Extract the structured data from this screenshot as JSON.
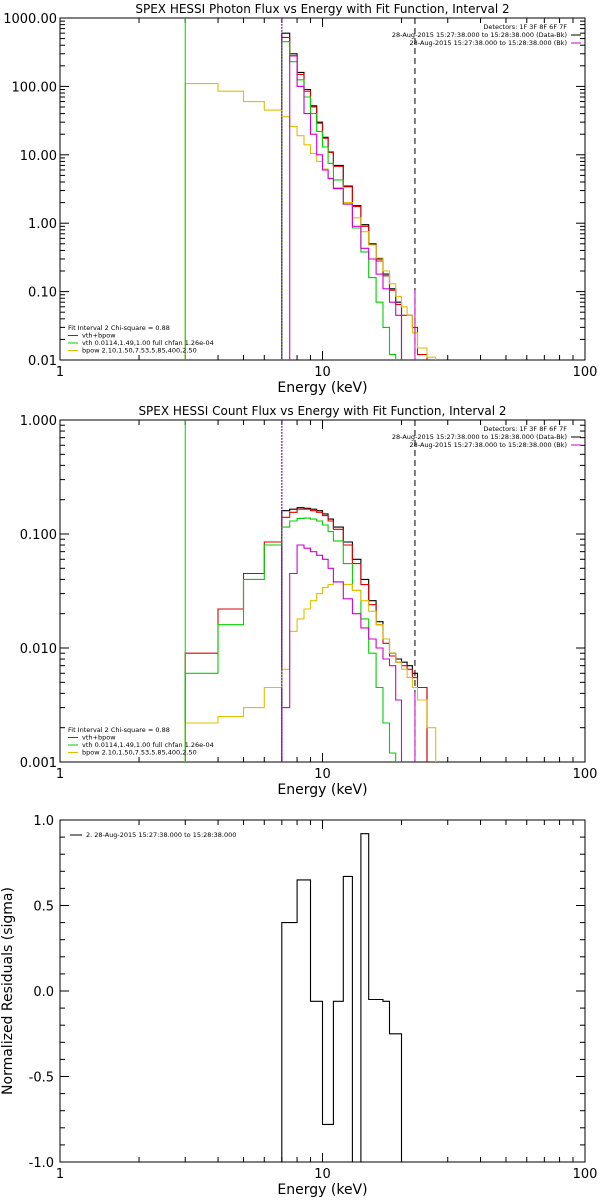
{
  "colors": {
    "total": "#000000",
    "model": "#e00000",
    "vth": "#00d000",
    "bpow": "#e0c000",
    "data": "#d000d0",
    "marker": "#8000ff"
  },
  "panels": [
    {
      "title": "SPEX HESSI Photon Flux vs Energy with Fit Function, Interval 2",
      "xlabel": "Energy (keV)",
      "ylabel": "",
      "ytick_labels": [
        "0.01",
        "0.10",
        "1.00",
        "10.00",
        "100.00",
        "1000.00"
      ],
      "xtick_labels": [
        "1",
        "10",
        "100"
      ],
      "info": [
        "Detectors: 1F 3F 8F 6F 7F",
        "28-Aug-2015 15:27:38.000 to 15:28:38.000 (Data-Bk)",
        "28-Aug-2015 15:27:38.000 to 15:28:38.000 (Bk)"
      ],
      "legend": [
        "Fit Interval 2   Chi-square = 0.88",
        "vth+bpow",
        "vth 0.0114,1.49,1.00  full chfan 1.26e-04",
        "bpow 2.10,1.50,7.53,5.85,400,2.50"
      ]
    },
    {
      "title": "SPEX HESSI Count Flux vs Energy with Fit Function, Interval 2",
      "xlabel": "Energy (keV)",
      "ylabel": "",
      "ytick_labels": [
        "0.001",
        "0.010",
        "0.100",
        "1.000"
      ],
      "xtick_labels": [
        "1",
        "10",
        "100"
      ],
      "info": [
        "Detectors: 1F 3F 8F 6F 7F",
        "28-Aug-2015 15:27:38.000 to 15:28:38.000 (Data-Bk)",
        "28-Aug-2015 15:27:38.000 to 15:28:38.000 (Bk)"
      ],
      "legend": [
        "Fit Interval 2   Chi-square = 0.88",
        "vth+bpow",
        "vth 0.0114,1.49,1.00  full chfan 1.26e-04",
        "bpow 2.10,1.50,7.53,5.85,400,2.50"
      ]
    },
    {
      "title": "",
      "xlabel": "Energy (keV)",
      "ylabel": "Normalized Residuals (sigma)",
      "ytick_labels": [
        "-1.0",
        "-0.5",
        "0.0",
        "0.5",
        "1.0"
      ],
      "xtick_labels": [
        "1",
        "10",
        "100"
      ],
      "info": [
        "2. 28-Aug-2015 15:27:38.000 to 15:28:38.000"
      ],
      "legend": []
    }
  ],
  "chart_data": [
    {
      "type": "line",
      "title": "SPEX HESSI Photon Flux vs Energy with Fit Function, Interval 2",
      "xlabel": "Energy (keV)",
      "xscale": "log",
      "yscale": "log",
      "xlim": [
        1,
        100
      ],
      "ylim": [
        0.01,
        1000
      ],
      "vlines": [
        {
          "x": 7.0,
          "style": "dotted"
        },
        {
          "x": 22.5,
          "style": "dashed"
        }
      ],
      "edges": [
        3,
        4,
        5,
        6,
        7,
        7.5,
        8,
        8.5,
        9,
        9.5,
        10,
        10.5,
        11,
        12,
        13,
        14,
        15,
        16,
        17,
        18,
        19,
        20,
        21,
        22,
        23,
        25,
        27,
        30
      ],
      "series": [
        {
          "name": "vth+bpow",
          "color": "#000000",
          "values": [
            null,
            null,
            null,
            null,
            600,
            300,
            160,
            90,
            52,
            30,
            18,
            11,
            7,
            3.5,
            1.8,
            0.95,
            0.5,
            0.3,
            0.18,
            0.11,
            0.07,
            null,
            null,
            null,
            null,
            null,
            null
          ]
        },
        {
          "name": "",
          "color": "#e00000",
          "values": [
            null,
            null,
            null,
            null,
            520,
            280,
            150,
            85,
            50,
            29,
            17.5,
            10.8,
            6.8,
            3.4,
            1.75,
            0.9,
            0.48,
            0.28,
            0.17,
            0.105,
            0.065,
            0.045,
            0.045,
            0.03,
            0.012,
            null,
            null
          ]
        },
        {
          "name": "vth 0.0114,1.49,1.00  full chfan 1.26e-04",
          "color": "#00d000",
          "values": [
            null,
            null,
            null,
            null,
            450,
            230,
            125,
            70,
            40,
            22,
            13,
            7.5,
            4.3,
            1.9,
            0.85,
            0.38,
            0.16,
            0.07,
            0.03,
            0.012,
            null,
            null,
            null,
            null,
            null,
            null,
            null
          ]
        },
        {
          "name": "bpow 2.10,1.50,7.53,5.85,400,2.50",
          "color": "#e0c000",
          "values": [
            110,
            85,
            60,
            45,
            36,
            26,
            19,
            14,
            10.5,
            8,
            6.2,
            4.5,
            3.3,
            2.0,
            1.2,
            0.75,
            0.48,
            0.31,
            0.2,
            0.13,
            0.085,
            0.06,
            0.045,
            0.025,
            0.015,
            0.011,
            null
          ]
        },
        {
          "name": "",
          "color": "#d000d0",
          "values": [
            null,
            null,
            null,
            null,
            null,
            280,
            100,
            40,
            20,
            10,
            6,
            4.5,
            3.2,
            1.9,
            0.9,
            0.43,
            0.3,
            0.18,
            0.11,
            0.07,
            0.045,
            null,
            null,
            null,
            null,
            null,
            null
          ]
        }
      ]
    },
    {
      "type": "line",
      "title": "SPEX HESSI Count Flux vs Energy with Fit Function, Interval 2",
      "xlabel": "Energy (keV)",
      "xscale": "log",
      "yscale": "log",
      "xlim": [
        1,
        100
      ],
      "ylim": [
        0.001,
        1
      ],
      "vlines": [
        {
          "x": 7.0,
          "style": "dotted"
        },
        {
          "x": 22.5,
          "style": "dashed"
        }
      ],
      "edges": [
        3,
        4,
        5,
        6,
        7,
        7.5,
        8,
        8.5,
        9,
        9.5,
        10,
        10.5,
        11,
        12,
        13,
        14,
        15,
        16,
        17,
        18,
        19,
        20,
        21,
        22,
        23,
        25,
        27,
        30
      ],
      "series": [
        {
          "name": "vth+bpow",
          "color": "#000000",
          "values": [
            null,
            null,
            null,
            null,
            0.16,
            0.165,
            0.17,
            0.168,
            0.165,
            0.16,
            0.15,
            0.135,
            0.115,
            0.085,
            0.06,
            0.04,
            0.026,
            0.017,
            0.012,
            0.009,
            0.008,
            0.0075,
            0.007,
            0.006,
            0.0045,
            null,
            null
          ]
        },
        {
          "name": "",
          "color": "#e00000",
          "values": [
            0.009,
            0.022,
            0.045,
            0.085,
            0.14,
            0.155,
            0.165,
            0.165,
            0.16,
            0.155,
            0.145,
            0.13,
            0.11,
            0.08,
            0.055,
            0.036,
            0.024,
            0.016,
            0.011,
            0.0085,
            0.0075,
            0.007,
            0.0065,
            0.0055,
            0.0045,
            null,
            null
          ]
        },
        {
          "name": "vth 0.0114,1.49,1.00  full chfan 1.26e-04",
          "color": "#00d000",
          "values": [
            0.006,
            0.016,
            0.04,
            0.08,
            0.115,
            0.13,
            0.137,
            0.138,
            0.135,
            0.13,
            0.12,
            0.105,
            0.087,
            0.055,
            0.032,
            0.018,
            0.009,
            0.0045,
            0.0022,
            0.0012,
            null,
            null,
            null,
            null,
            null,
            null,
            null
          ]
        },
        {
          "name": "bpow 2.10,1.50,7.53,5.85,400,2.50",
          "color": "#e0c000",
          "values": [
            0.0022,
            0.0025,
            0.003,
            0.0045,
            0.0065,
            0.014,
            0.018,
            0.022,
            0.026,
            0.03,
            0.034,
            0.036,
            0.038,
            0.036,
            0.032,
            0.026,
            0.021,
            0.016,
            0.012,
            0.009,
            0.0075,
            0.0065,
            0.0055,
            0.0045,
            0.0035,
            0.002,
            null
          ]
        },
        {
          "name": "",
          "color": "#d000d0",
          "values": [
            null,
            null,
            null,
            null,
            0.003,
            0.045,
            0.08,
            0.075,
            0.07,
            0.065,
            0.06,
            0.05,
            0.038,
            0.027,
            0.02,
            0.015,
            0.012,
            0.01,
            0.008,
            0.007,
            0.0035,
            null,
            null,
            null,
            null,
            null,
            null
          ]
        }
      ]
    },
    {
      "type": "line",
      "title": "",
      "xlabel": "Energy (keV)",
      "ylabel": "Normalized Residuals (sigma)",
      "xscale": "log",
      "yscale": "linear",
      "xlim": [
        1,
        100
      ],
      "ylim": [
        -1.0,
        1.0
      ],
      "edges": [
        7,
        8,
        9,
        10,
        11,
        12,
        13,
        14,
        15,
        16,
        17,
        18,
        20,
        21,
        22.5
      ],
      "series": [
        {
          "name": "2. 28-Aug-2015 15:27:38.000 to 15:28:38.000",
          "color": "#000000",
          "values": [
            0.4,
            0.65,
            -0.06,
            -0.78,
            -0.06,
            0.67,
            -1.0,
            0.92,
            -0.05,
            -0.05,
            -0.06,
            -0.25,
            -1.0,
            null
          ]
        }
      ]
    }
  ]
}
